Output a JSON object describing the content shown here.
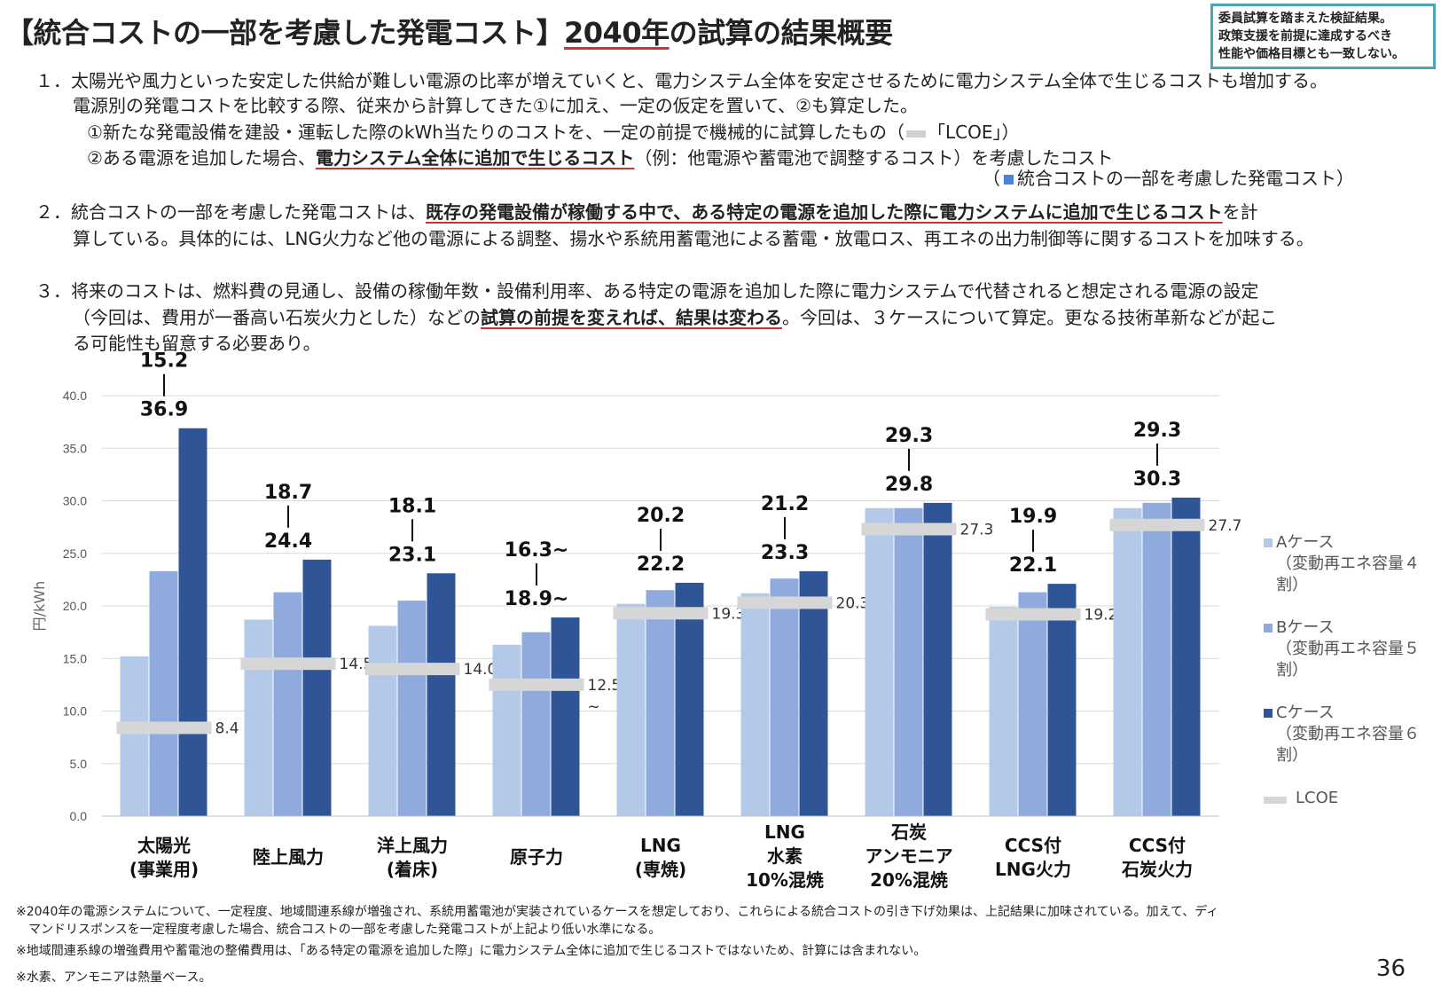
{
  "title_pre": "【統合コストの一部を考慮した発電コスト】",
  "title_hl": "2040年",
  "title_post": "の試算の結果概要",
  "note_box": [
    "委員試算を踏まえた検証結果。",
    "政策支援を前提に達成するべき",
    "性能や価格目標とも一致しない。"
  ],
  "p1": {
    "l1": "１．太陽光や風力といった安定した供給が難しい電源の比率が増えていくと、電力システム全体を安定させるために電力システム全体で生じるコストも増加する。",
    "l2": "電源別の発電コストを比較する際、従来から計算してきた①に加え、一定の仮定を置いて、②も算定した。",
    "l3a": "①新たな発電設備を建設・運転した際のkWh当たりのコストを、一定の前提で機械的に試算したもの（",
    "l3b": "「LCOE」）",
    "l4a": "②ある電源を追加した場合、",
    "l4u": "電力システム全体に追加で生じるコスト",
    "l4b": "（例：他電源や蓄電池で調整するコスト）を考慮したコスト",
    "l5a": "（",
    "l5b": "統合コストの一部を考慮した発電コスト）"
  },
  "p2": {
    "l1a": "２．統合コストの一部を考慮した発電コストは、",
    "l1u": "既存の発電設備が稼働する中で、ある特定の電源を追加した際に電力システムに追加で生じるコスト",
    "l1b": "を計",
    "l2": "算している。具体的には、LNG火力など他の電源による調整、揚水や系統用蓄電池による蓄電・放電ロス、再エネの出力制御等に関するコストを加味する。"
  },
  "p3": {
    "l1": "３．将来のコストは、燃料費の見通し、設備の稼働年数・設備利用率、ある特定の電源を追加した際に電力システムで代替されると想定される電源の設定",
    "l2a": "（今回は、費用が一番高い石炭火力とした）などの",
    "l2u": "試算の前提を変えれば、結果は変わる",
    "l2b": "。今回は、３ケースについて算定。更なる技術革新などが起こ",
    "l3": "る可能性も留意する必要あり。"
  },
  "chart_data": {
    "type": "bar",
    "ylabel": "円/kWh",
    "ylim": [
      0,
      40
    ],
    "yticks": [
      "0.0",
      "5.0",
      "10.0",
      "15.0",
      "20.0",
      "25.0",
      "30.0",
      "35.0",
      "40.0"
    ],
    "categories": [
      "太陽光\n(事業用)",
      "陸上風力",
      "洋上風力\n(着床)",
      "原子力",
      "LNG\n(専焼)",
      "LNG\n水素\n10%混焼",
      "石炭\nアンモニア\n20%混焼",
      "CCS付\nLNG火力",
      "CCS付\n石炭火力"
    ],
    "series": [
      {
        "name": "Aケース",
        "sub": "（変動再エネ容量４割）",
        "color": "#b4c9e8",
        "values": [
          15.2,
          18.7,
          18.1,
          16.3,
          20.2,
          21.2,
          29.3,
          19.9,
          29.3
        ]
      },
      {
        "name": "Bケース",
        "sub": "（変動再エネ容量５割）",
        "color": "#8faadc",
        "values": [
          23.3,
          21.3,
          20.5,
          17.5,
          21.5,
          22.6,
          29.3,
          21.3,
          29.8
        ]
      },
      {
        "name": "Cケース",
        "sub": "（変動再エネ容量６割）",
        "color": "#2f5597",
        "values": [
          36.9,
          24.4,
          23.1,
          18.9,
          22.2,
          23.3,
          29.8,
          22.1,
          30.3
        ]
      }
    ],
    "lcoe": {
      "name": "LCOE",
      "color": "#d6d6d6",
      "values": [
        8.4,
        14.5,
        14.0,
        12.5,
        19.3,
        20.3,
        27.3,
        19.2,
        27.7
      ],
      "labels": [
        "8.4",
        "14.5",
        "14.0",
        "12.5\n~",
        "19.3",
        "20.3",
        "27.3",
        "19.2",
        "27.7"
      ]
    },
    "range_labels": [
      [
        "15.2",
        "36.9"
      ],
      [
        "18.7",
        "24.4"
      ],
      [
        "18.1",
        "23.1"
      ],
      [
        "16.3~",
        "18.9~"
      ],
      [
        "20.2",
        "22.2"
      ],
      [
        "21.2",
        "23.3"
      ],
      [
        "29.3",
        "29.8"
      ],
      [
        "19.9",
        "22.1"
      ],
      [
        "29.3",
        "30.3"
      ]
    ]
  },
  "footnotes": [
    "※2040年の電源システムについて、一定程度、地域間連系線が増強され、系統用蓄電池が実装されているケースを想定しており、これらによる統合コストの引き下げ効果は、上記結果に加味されている。加えて、ディ",
    "マンドリスポンスを一定程度考慮した場合、統合コストの一部を考慮した発電コストが上記より低い水準になる。",
    "※地域間連系線の増強費用や蓄電池の整備費用は、「ある特定の電源を追加した際」に電力システム全体に追加で生じるコストではないため、計算には含まれない。",
    "※水素、アンモニアは熱量ベース。"
  ],
  "page_number": "36"
}
